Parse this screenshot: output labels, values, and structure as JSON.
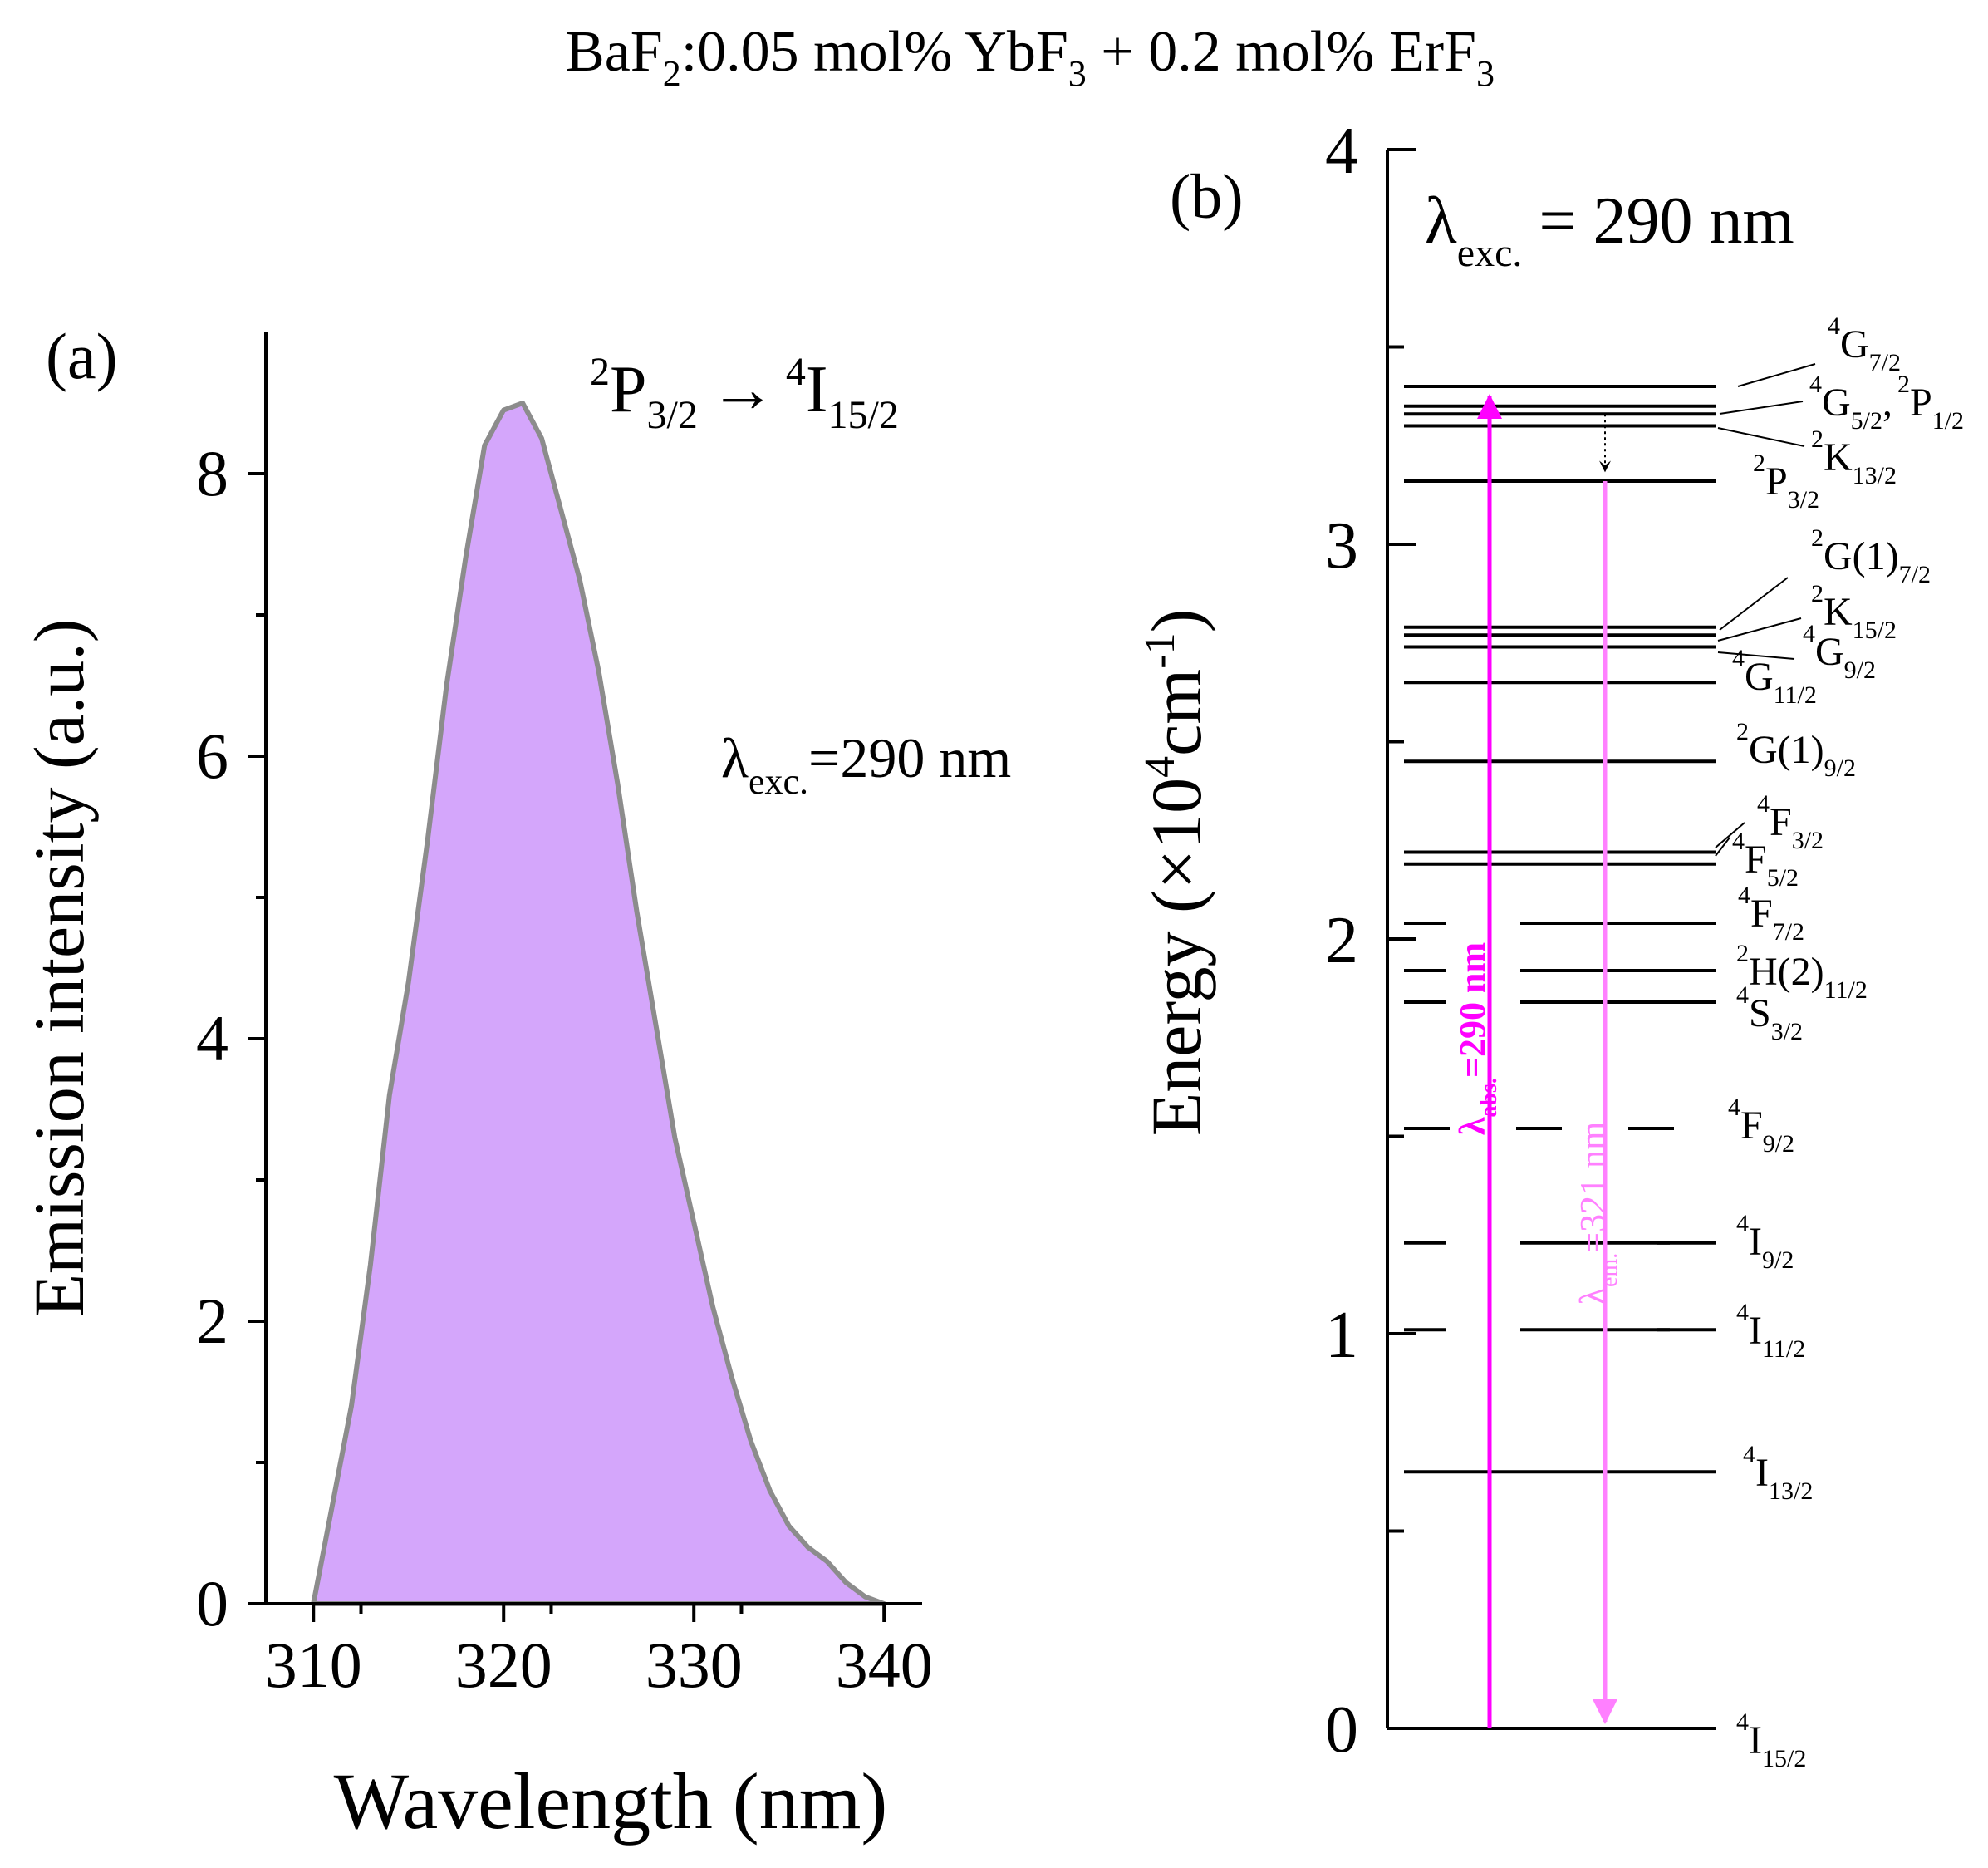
{
  "figure_title": {
    "prefix": "BaF",
    "s1": "2",
    "mid1": ":0.05 mol% YbF",
    "s2": "3",
    "mid2": " + 0.2 mol% ErF",
    "s3": "3"
  },
  "colors": {
    "fill": "#d4a6fb",
    "fill_stroke": "#8c8c8c",
    "abs_arrow": "#ff00ff",
    "em_arrow": "#ff80ff"
  },
  "chart_data": [
    {
      "type": "area",
      "panel_label": "(a)",
      "transition": {
        "upper": "P",
        "upper_mult": "2",
        "upper_j": "3/2",
        "arrow": "→",
        "lower": "I",
        "lower_mult": "4",
        "lower_j": "15/2"
      },
      "annotation": {
        "lambda": "λ",
        "sub": "exc.",
        "value": "=290 nm"
      },
      "xlabel": "Wavelength (nm)",
      "ylabel": "Emission intensity (a.u.)",
      "xlim": [
        307.5,
        342.0
      ],
      "ylim": [
        0,
        9.0
      ],
      "xticks": [
        310,
        320,
        330,
        340
      ],
      "xtick_labels": [
        "310",
        "320",
        "330",
        "340"
      ],
      "yticks": [
        0,
        2,
        4,
        6,
        8
      ],
      "ytick_labels": [
        "0",
        "2",
        "4",
        "6",
        "8"
      ],
      "x": [
        310,
        311,
        312,
        313,
        314,
        315,
        316,
        317,
        318,
        319,
        320,
        321,
        322,
        323,
        324,
        325,
        326,
        327,
        328,
        329,
        330,
        331,
        332,
        333,
        334,
        335,
        336,
        337,
        338,
        339,
        340
      ],
      "y": [
        0.0,
        0.7,
        1.4,
        2.4,
        3.6,
        4.4,
        5.4,
        6.5,
        7.4,
        8.2,
        8.45,
        8.5,
        8.25,
        7.75,
        7.25,
        6.6,
        5.8,
        4.9,
        4.1,
        3.3,
        2.7,
        2.1,
        1.6,
        1.15,
        0.8,
        0.55,
        0.4,
        0.3,
        0.15,
        0.05,
        0.0
      ]
    },
    {
      "type": "energy-level-diagram",
      "panel_label": "(b)",
      "excitation": {
        "lambda": "λ",
        "sub": "exc.",
        "value": " = 290 nm"
      },
      "ylabel_prefix": "Energy (×10",
      "ylabel_sup": "4",
      "ylabel_mid": "cm",
      "ylabel_sup2": "-1",
      "ylabel_suffix": ")",
      "ylim": [
        0,
        4
      ],
      "yticks": [
        0,
        1,
        2,
        3,
        4
      ],
      "ytick_labels": [
        "0",
        "1",
        "2",
        "3",
        "4"
      ],
      "minor_ticks": [
        0.5,
        1.5,
        2.5,
        3.5
      ],
      "levels": [
        {
          "energy": 0.0,
          "style": "bold"
        },
        {
          "energy": 0.65,
          "style": "solid"
        },
        {
          "energy": 1.01,
          "style": "gap"
        },
        {
          "energy": 1.23,
          "style": "gap"
        },
        {
          "energy": 1.52,
          "style": "dashed"
        },
        {
          "energy": 1.84,
          "style": "gap"
        },
        {
          "energy": 1.92,
          "style": "gap"
        },
        {
          "energy": 2.04,
          "style": "gap"
        },
        {
          "energy": 2.19,
          "style": "solid"
        },
        {
          "energy": 2.22,
          "style": "solid"
        },
        {
          "energy": 2.45,
          "style": "solid"
        },
        {
          "energy": 2.65,
          "style": "solid"
        },
        {
          "energy": 2.74,
          "style": "solid"
        },
        {
          "energy": 2.77,
          "style": "solid"
        },
        {
          "energy": 2.79,
          "style": "solid"
        },
        {
          "energy": 3.16,
          "style": "solid"
        },
        {
          "energy": 3.3,
          "style": "solid"
        },
        {
          "energy": 3.33,
          "style": "solid"
        },
        {
          "energy": 3.35,
          "style": "solid"
        },
        {
          "energy": 3.4,
          "style": "solid"
        }
      ],
      "level_labels": [
        {
          "sup": "4",
          "base": "I",
          "sub": "15/2"
        },
        {
          "sup": "4",
          "base": "I",
          "sub": "13/2"
        },
        {
          "sup": "4",
          "base": "I",
          "sub": "11/2"
        },
        {
          "sup": "4",
          "base": "I",
          "sub": "9/2"
        },
        {
          "sup": "4",
          "base": "F",
          "sub": "9/2"
        },
        {
          "sup": "4",
          "base": "S",
          "sub": "3/2"
        },
        {
          "sup": "2",
          "base": "H(2)",
          "sub": "11/2"
        },
        {
          "sup": "4",
          "base": "F",
          "sub": "7/2"
        },
        {
          "sup": "4",
          "base": "F",
          "sub": "5/2"
        },
        {
          "sup": "4",
          "base": "F",
          "sub": "3/2"
        },
        {
          "sup": "2",
          "base": "G(1)",
          "sub": "9/2"
        },
        {
          "sup": "4",
          "base": "G",
          "sub": "11/2"
        },
        {
          "sup": "4",
          "base": "G",
          "sub": "9/2"
        },
        {
          "sup": "2",
          "base": "K",
          "sub": "15/2"
        },
        {
          "sup": "2",
          "base": "G(1)",
          "sub": "7/2"
        },
        {
          "sup": "2",
          "base": "P",
          "sub": "3/2"
        },
        {
          "sup": "2",
          "base": "K",
          "sub": "13/2"
        },
        {
          "sup": "4",
          "base": "G",
          "sub": "7/2"
        }
      ],
      "label_4G52": {
        "sup": "4",
        "base": "G",
        "sub": "5/2",
        "comma": ",",
        "sup2": "2",
        "base2": "P",
        "sub2": "1/2"
      },
      "abs_arrow": {
        "lambda": "λ",
        "sub": "abs.",
        "value": "=290 nm",
        "from": 0.0,
        "to": 3.4
      },
      "em_arrow": {
        "lambda": "λ",
        "sub": "em.",
        "value": "=321 nm",
        "from": 3.16,
        "to": 0.0
      },
      "relax_from": 3.33,
      "relax_to": 3.16
    }
  ]
}
